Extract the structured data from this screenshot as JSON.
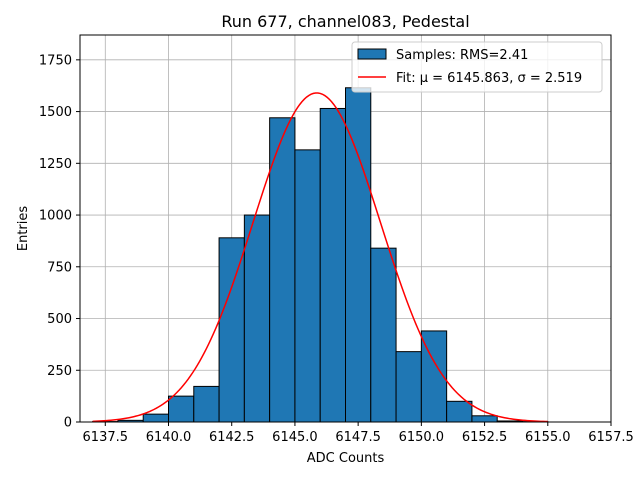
{
  "chart_data": {
    "type": "histogram",
    "title": "Run 677, channel083, Pedestal",
    "xlabel": "ADC Counts",
    "ylabel": "Entries",
    "xlim": [
      6136.5,
      6157.5
    ],
    "ylim": [
      0,
      1870
    ],
    "grid": true,
    "x_ticks": [
      6137.5,
      6140.0,
      6142.5,
      6145.0,
      6147.5,
      6150.0,
      6152.5,
      6155.0,
      6157.5
    ],
    "x_tick_labels": [
      "6137.5",
      "6140.0",
      "6142.5",
      "6145.0",
      "6147.5",
      "6150.0",
      "6152.5",
      "6155.0",
      "6157.5"
    ],
    "y_ticks": [
      0,
      250,
      500,
      750,
      1000,
      1250,
      1500,
      1750
    ],
    "y_tick_labels": [
      "0",
      "250",
      "500",
      "750",
      "1000",
      "1250",
      "1500",
      "1750"
    ],
    "bins": [
      {
        "left": 6137.0,
        "right": 6138.0,
        "count": 2
      },
      {
        "left": 6138.0,
        "right": 6139.0,
        "count": 8
      },
      {
        "left": 6139.0,
        "right": 6140.0,
        "count": 38
      },
      {
        "left": 6140.0,
        "right": 6141.0,
        "count": 125
      },
      {
        "left": 6141.0,
        "right": 6142.0,
        "count": 172
      },
      {
        "left": 6142.0,
        "right": 6143.0,
        "count": 890
      },
      {
        "left": 6143.0,
        "right": 6144.0,
        "count": 1000
      },
      {
        "left": 6144.0,
        "right": 6145.0,
        "count": 1470
      },
      {
        "left": 6145.0,
        "right": 6146.0,
        "count": 1315
      },
      {
        "left": 6146.0,
        "right": 6147.0,
        "count": 1515
      },
      {
        "left": 6147.0,
        "right": 6148.0,
        "count": 1615
      },
      {
        "left": 6148.0,
        "right": 6149.0,
        "count": 840
      },
      {
        "left": 6149.0,
        "right": 6150.0,
        "count": 340
      },
      {
        "left": 6150.0,
        "right": 6151.0,
        "count": 440
      },
      {
        "left": 6151.0,
        "right": 6152.0,
        "count": 100
      },
      {
        "left": 6152.0,
        "right": 6153.0,
        "count": 30
      },
      {
        "left": 6153.0,
        "right": 6154.0,
        "count": 5
      },
      {
        "left": 6154.0,
        "right": 6155.0,
        "count": 2
      }
    ],
    "series": [
      {
        "name": "Samples: RMS=2.41",
        "type": "bar",
        "color": "#1f77b4",
        "edgecolor": "#000000"
      },
      {
        "name": "Fit: μ = 6145.863, σ = 2.519",
        "type": "line",
        "color": "#ff0000",
        "mu": 6145.863,
        "sigma": 2.519,
        "amplitude": 1590,
        "x_range": [
          6137.0,
          6155.0
        ]
      }
    ],
    "legend": {
      "position": "top-right",
      "entries": [
        "Samples: RMS=2.41",
        "Fit: μ = 6145.863, σ = 2.519"
      ]
    }
  }
}
